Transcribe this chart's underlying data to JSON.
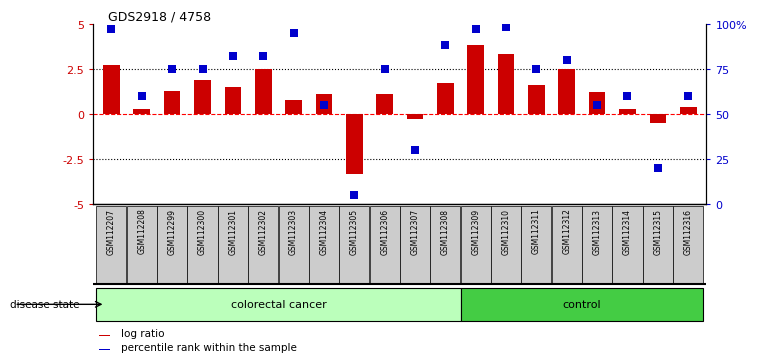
{
  "title": "GDS2918 / 4758",
  "samples": [
    "GSM112207",
    "GSM112208",
    "GSM112299",
    "GSM112300",
    "GSM112301",
    "GSM112302",
    "GSM112303",
    "GSM112304",
    "GSM112305",
    "GSM112306",
    "GSM112307",
    "GSM112308",
    "GSM112309",
    "GSM112310",
    "GSM112311",
    "GSM112312",
    "GSM112313",
    "GSM112314",
    "GSM112315",
    "GSM112316"
  ],
  "log_ratio": [
    2.7,
    0.3,
    1.3,
    1.9,
    1.5,
    2.5,
    0.8,
    1.1,
    -3.3,
    1.1,
    -0.3,
    1.7,
    3.8,
    3.3,
    1.6,
    2.5,
    1.2,
    0.3,
    -0.5,
    0.4
  ],
  "percentile": [
    97,
    60,
    75,
    75,
    82,
    82,
    95,
    55,
    5,
    75,
    30,
    88,
    97,
    98,
    75,
    80,
    55,
    60,
    20,
    60
  ],
  "colorectal_cancer_count": 12,
  "control_count": 8,
  "ylim_left": [
    -5,
    5
  ],
  "yticks_left": [
    -5,
    -2.5,
    0,
    2.5,
    5
  ],
  "yticks_right": [
    0,
    25,
    50,
    75,
    100
  ],
  "ytick_labels_right": [
    "0",
    "25",
    "50",
    "75",
    "100%"
  ],
  "bar_color": "#cc0000",
  "dot_color": "#0000cc",
  "colorectal_color": "#bbffbb",
  "control_color": "#44cc44",
  "bg_color": "#cccccc",
  "legend_bar": "log ratio",
  "legend_dot": "percentile rank within the sample",
  "disease_state_label": "disease state",
  "colorectal_label": "colorectal cancer",
  "control_label": "control"
}
